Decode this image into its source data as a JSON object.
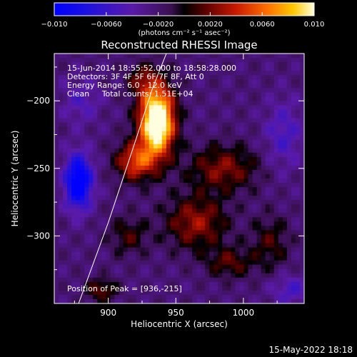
{
  "chart_data": {
    "type": "heatmap",
    "title": "Reconstructed RHESSI Image",
    "xlabel": "Heliocentric X (arcsec)",
    "ylabel": "Heliocentric Y (arcsec)",
    "xlim": [
      860,
      1045
    ],
    "ylim": [
      -350,
      -165
    ],
    "x_ticks": [
      900,
      950,
      1000
    ],
    "x_tick_labels": [
      "900",
      "950",
      "1000"
    ],
    "y_ticks": [
      -200,
      -250,
      -300
    ],
    "y_tick_labels": [
      "−200",
      "−250",
      "−300"
    ],
    "colorbar": {
      "range": [
        -0.01,
        0.01
      ],
      "ticks": [
        -0.01,
        -0.006,
        -0.002,
        0.002,
        0.006,
        0.01
      ],
      "tick_labels": [
        "−0.010",
        "−0.0060",
        "−0.0020",
        "0.0020",
        "0.0060",
        "0.010"
      ],
      "unit_label": "(photons cm⁻² s⁻¹ asec⁻²)"
    },
    "annotations": [
      "15-Jun-2014 18:55:52.000 to 18:58:28.000",
      "Detectors: 3F 4F 5F 6F 7F 8F, Att 0",
      "Energy Range: 6.0 - 12.0 keV",
      "Clean     Total counts: 1.51E+04"
    ],
    "peak_label": "Position of Peak = [936,-215]",
    "peak": [
      936,
      -215
    ],
    "limb_curve": [
      [
        878,
        -350
      ],
      [
        900,
        -290
      ],
      [
        920,
        -230
      ],
      [
        933,
        -190
      ],
      [
        943,
        -165
      ]
    ],
    "sources": [
      {
        "x": 936,
        "y": -215,
        "sx": 9,
        "sy": 18,
        "amp": 0.0155
      },
      {
        "x": 920,
        "y": -245,
        "sx": 10,
        "sy": 10,
        "amp": 0.007
      },
      {
        "x": 985,
        "y": -250,
        "sx": 18,
        "sy": 12,
        "amp": 0.0045
      },
      {
        "x": 965,
        "y": -290,
        "sx": 16,
        "sy": 14,
        "amp": 0.005
      },
      {
        "x": 915,
        "y": -300,
        "sx": 10,
        "sy": 10,
        "amp": 0.003
      },
      {
        "x": 1020,
        "y": -305,
        "sx": 10,
        "sy": 14,
        "amp": 0.003
      },
      {
        "x": 990,
        "y": -320,
        "sx": 12,
        "sy": 8,
        "amp": 0.0035
      },
      {
        "x": 895,
        "y": -340,
        "sx": 8,
        "sy": 6,
        "amp": 0.004
      },
      {
        "x": 925,
        "y": -185,
        "sx": 8,
        "sy": 8,
        "amp": 0.0035
      },
      {
        "x": 878,
        "y": -260,
        "sx": 7,
        "sy": 14,
        "amp": -0.0095
      },
      {
        "x": 1030,
        "y": -225,
        "sx": 10,
        "sy": 18,
        "amp": -0.003
      },
      {
        "x": 880,
        "y": -200,
        "sx": 10,
        "sy": 12,
        "amp": -0.0025
      },
      {
        "x": 1035,
        "y": -340,
        "sx": 10,
        "sy": 8,
        "amp": -0.003
      }
    ]
  },
  "footer": {
    "timestamp": "15-May-2022 18:18"
  }
}
